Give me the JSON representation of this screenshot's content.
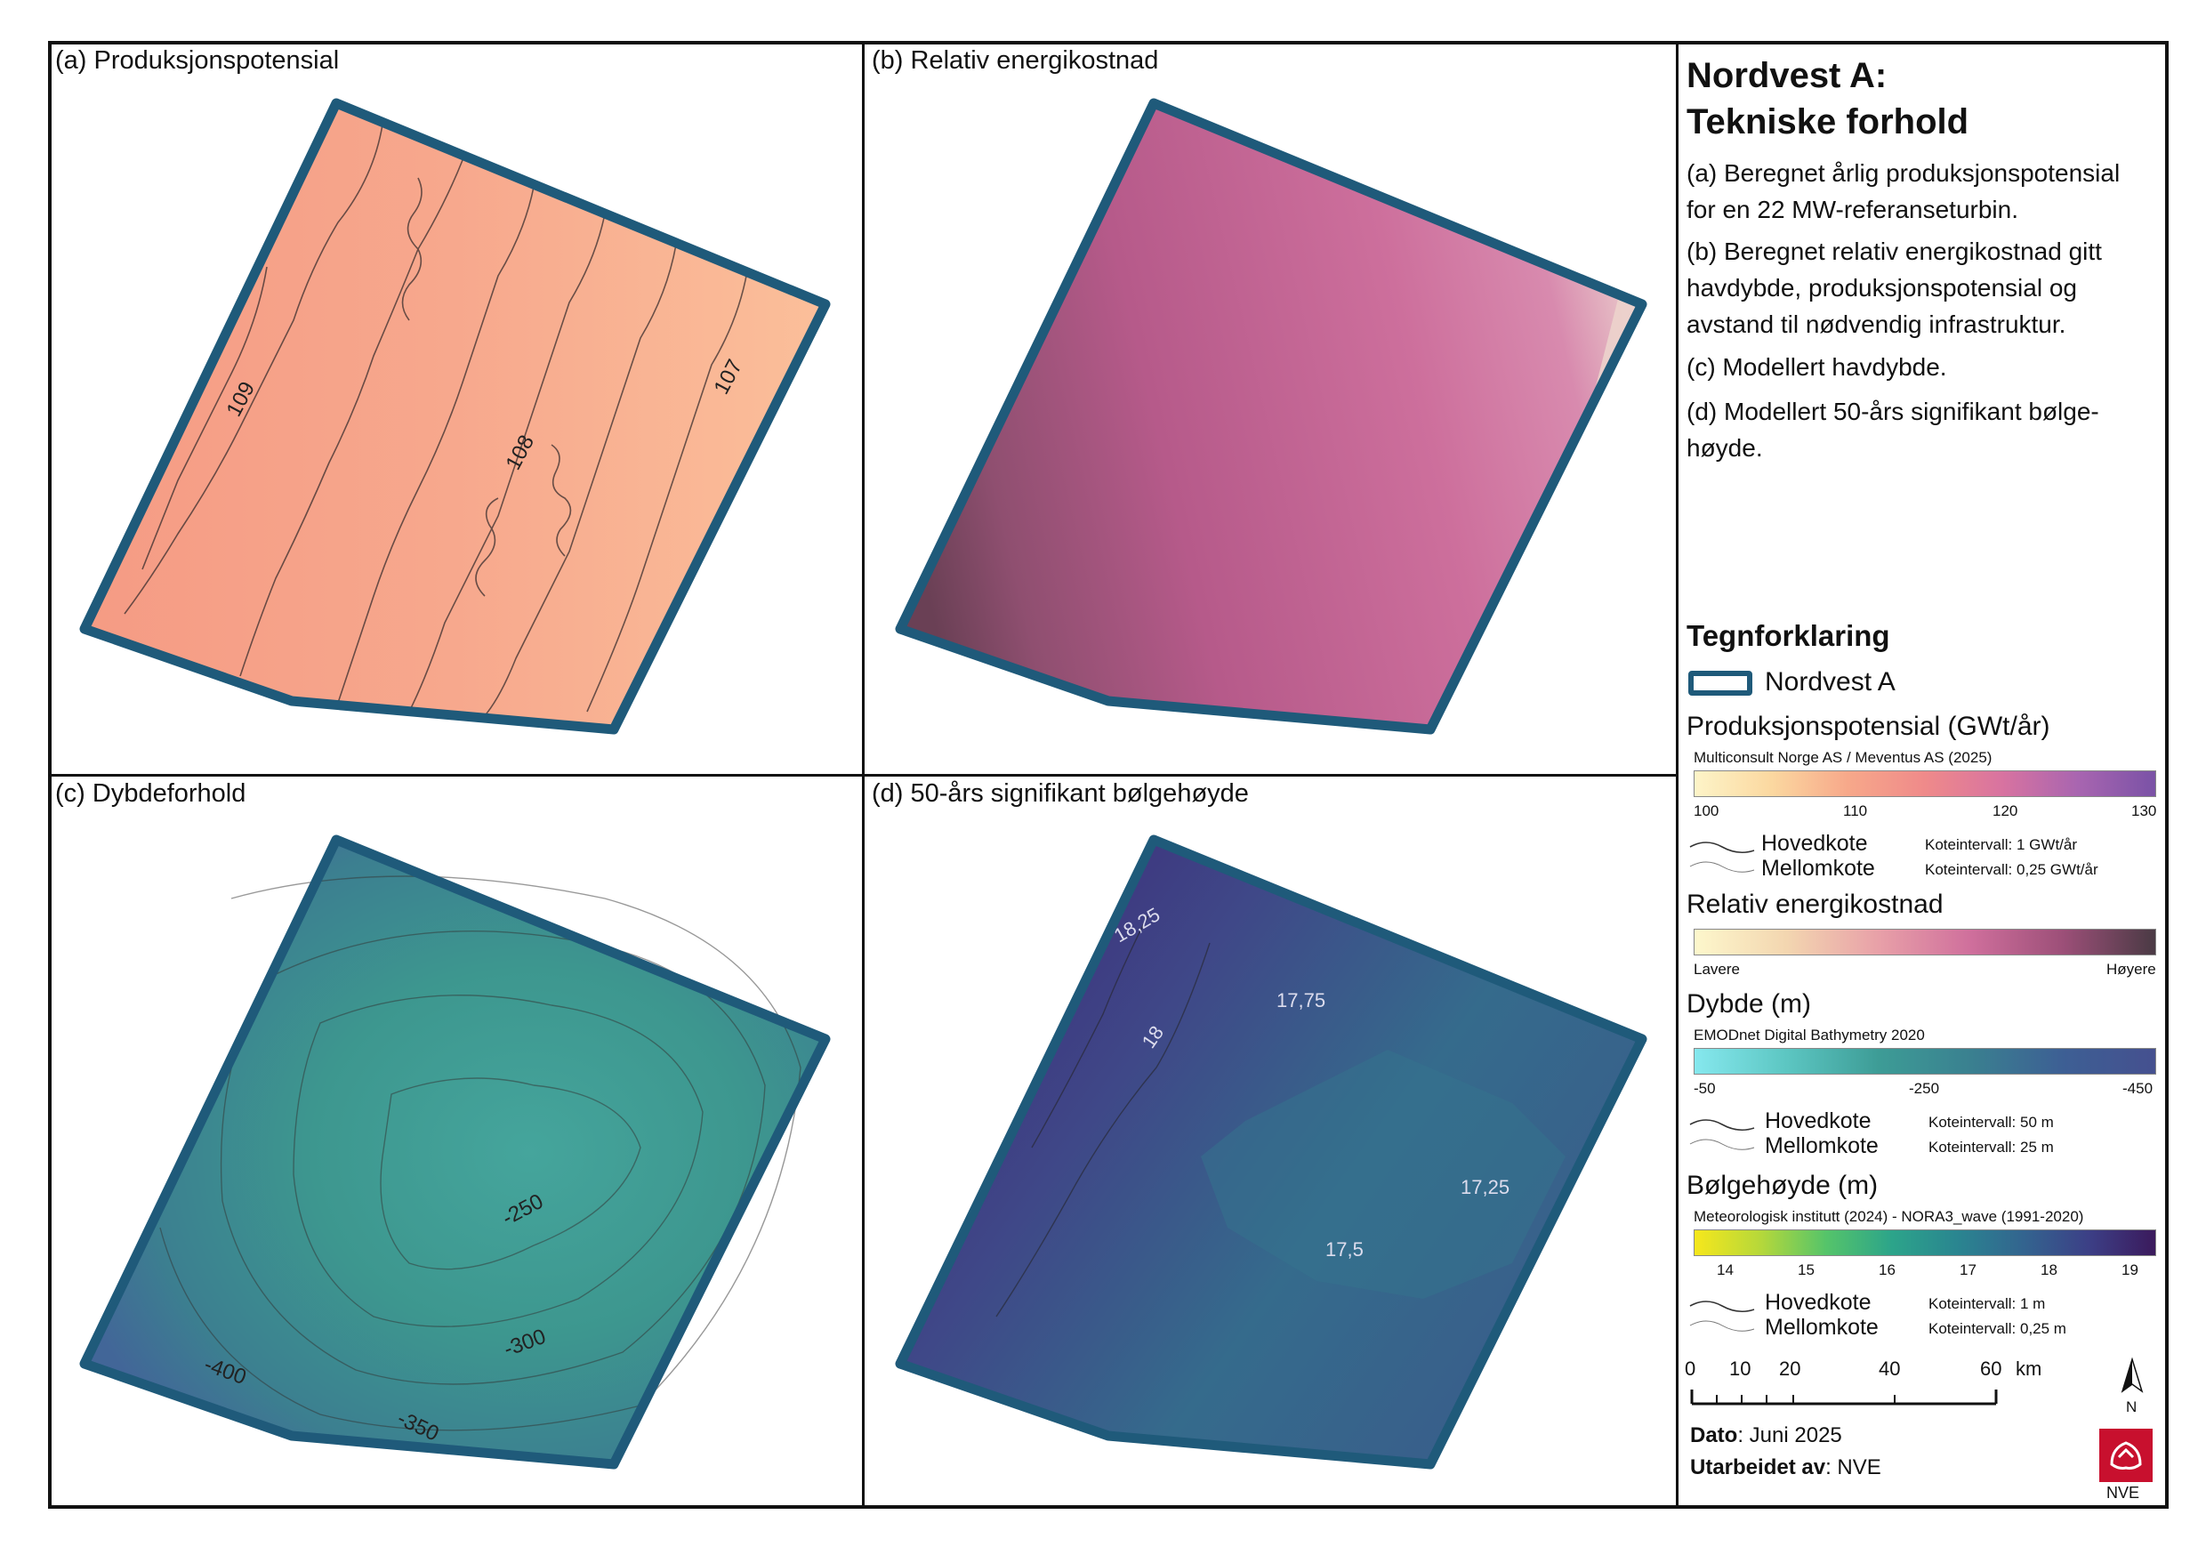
{
  "panels": {
    "a": {
      "title": "(a) Produksjonspotensial",
      "labels": [
        "109",
        "108",
        "107"
      ]
    },
    "b": {
      "title": "(b) Relativ energikostnad"
    },
    "c": {
      "title": "(c) Dybdeforhold",
      "labels": [
        "-250",
        "-300",
        "-350",
        "-400"
      ]
    },
    "d": {
      "title": "(d) 50-års signifikant bølgehøyde",
      "labels": [
        "18,25",
        "17,75",
        "18",
        "17,25",
        "17,5"
      ]
    }
  },
  "sidebar": {
    "title_line1": "Nordvest A:",
    "title_line2": "Tekniske forhold",
    "desc_a": [
      "(a) Beregnet årlig produksjonspotensial",
      "for en 22 MW-referanseturbin."
    ],
    "desc_b": [
      "(b) Beregnet relativ energikostnad gitt",
      "havdybde, produksjonspotensial og",
      "avstand til nødvendig infrastruktur."
    ],
    "desc_c": "(c) Modellert havdybde.",
    "desc_d": [
      "(d) Modellert 50-års signifikant bølge-",
      "høyde."
    ]
  },
  "legend": {
    "heading": "Tegnforklaring",
    "area_label": "Nordvest A",
    "area_color": "#1f5a7a",
    "production": {
      "title": "Produksjonspotensial (GWt/år)",
      "source": "Multiconsult Norge AS / Meventus AS (2025)",
      "ticks": [
        "100",
        "110",
        "120",
        "130"
      ],
      "major": "Hovedkote",
      "minor": "Mellomkote",
      "major_interval": "Koteintervall: 1 GWt/år",
      "minor_interval": "Koteintervall: 0,25 GWt/år"
    },
    "cost": {
      "title": "Relativ energikostnad",
      "low": "Lavere",
      "high": "Høyere"
    },
    "depth": {
      "title": "Dybde (m)",
      "source": "EMODnet Digital Bathymetry 2020",
      "ticks": [
        "-50",
        "-250",
        "-450"
      ],
      "major": "Hovedkote",
      "minor": "Mellomkote",
      "major_interval": "Koteintervall: 50 m",
      "minor_interval": "Koteintervall: 25 m"
    },
    "wave": {
      "title": "Bølgehøyde (m)",
      "source": "Meteorologisk institutt (2024) - NORA3_wave (1991-2020)",
      "ticks": [
        "14",
        "15",
        "16",
        "17",
        "18",
        "19"
      ],
      "major": "Hovedkote",
      "minor": "Mellomkote",
      "major_interval": "Koteintervall: 1 m",
      "minor_interval": "Koteintervall: 0,25 m"
    },
    "scale": {
      "ticks": [
        "0",
        "10",
        "20",
        "40",
        "60"
      ],
      "unit": "km"
    },
    "north": "N",
    "date_label": "Dato",
    "date_value": ": Juni 2025",
    "author_label": "Utarbeidet av",
    "author_value": ": NVE",
    "logo_text": "NVE"
  }
}
